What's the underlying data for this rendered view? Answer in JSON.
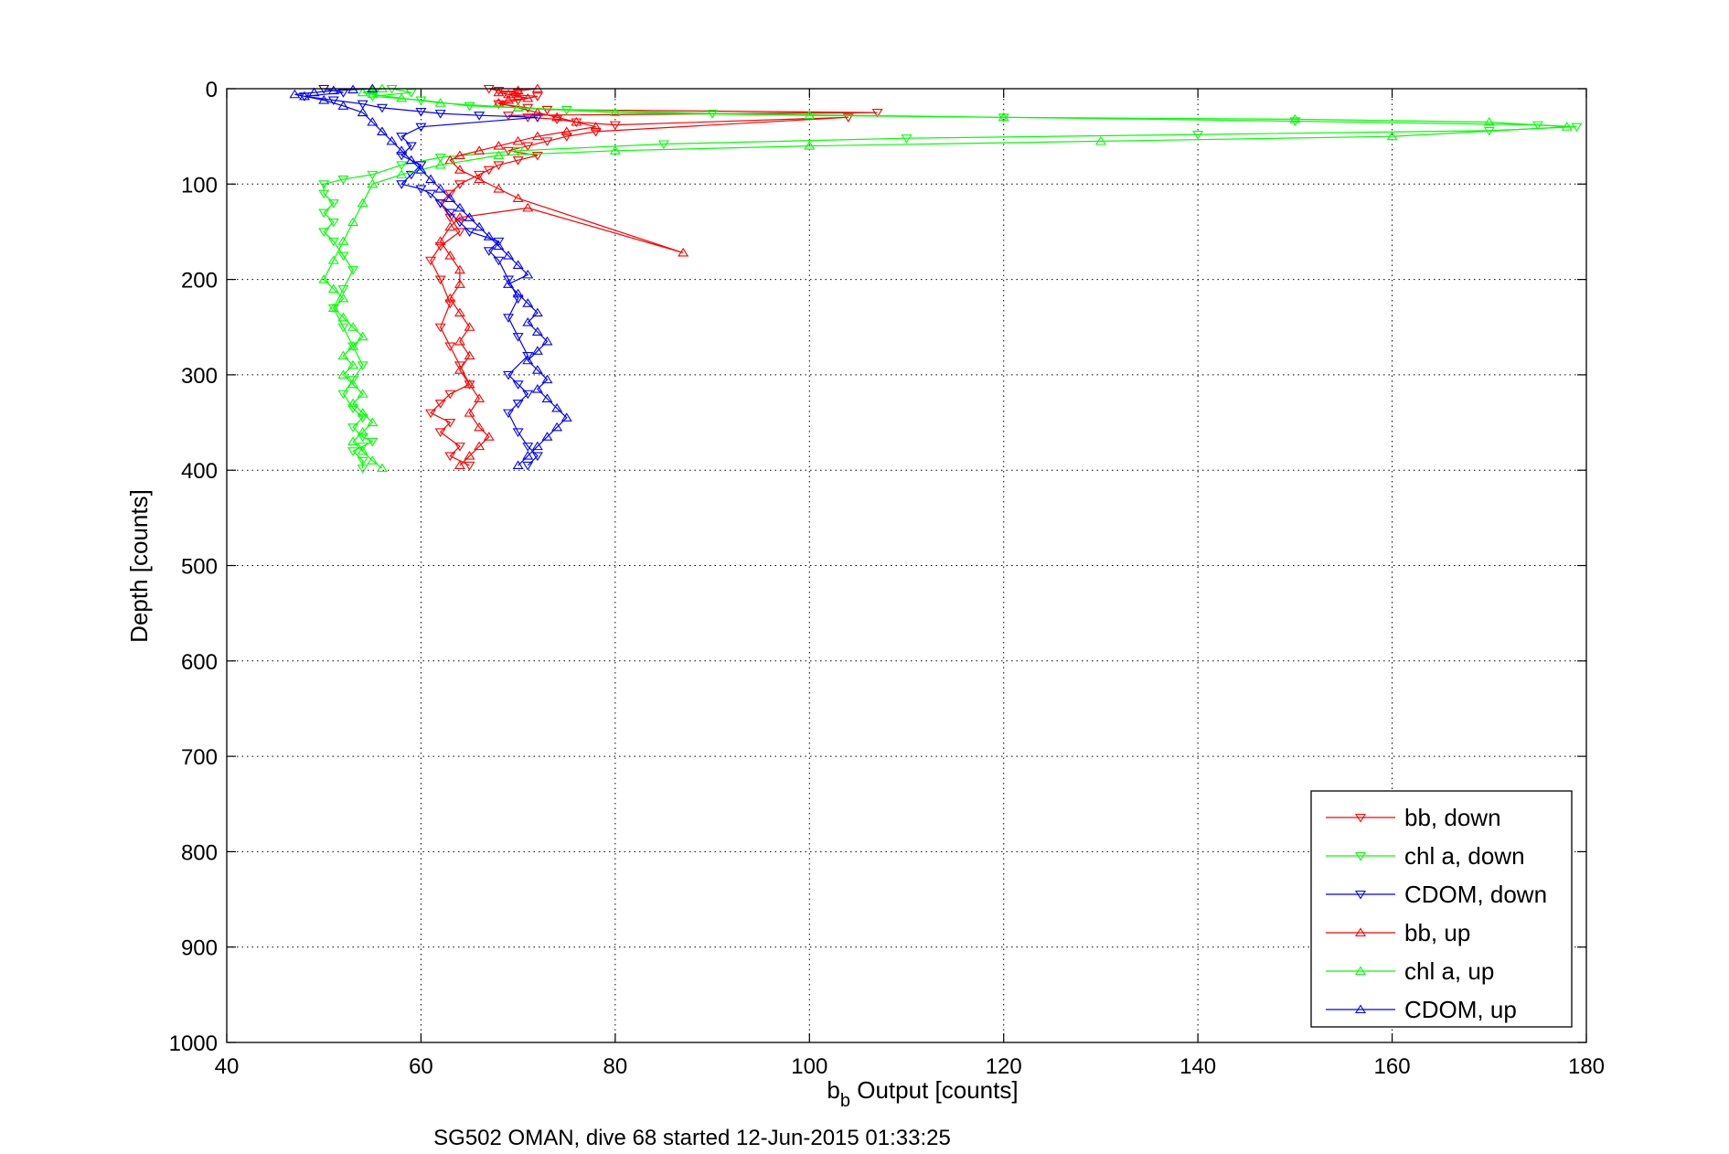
{
  "chart_data": {
    "type": "scatter",
    "title": "",
    "xlabel": {
      "main": "b",
      "sub": "b",
      "rest": " Output [counts]"
    },
    "ylabel": "Depth [counts]",
    "caption": "SG502 OMAN, dive 68 started 12-Jun-2015 01:33:25",
    "xlim": [
      40,
      180
    ],
    "ylim": [
      0,
      1000
    ],
    "y_reversed": true,
    "grid": true,
    "legend_position": "bottom-right",
    "xticks": [
      40,
      60,
      80,
      100,
      120,
      140,
      160,
      180
    ],
    "yticks": [
      0,
      100,
      200,
      300,
      400,
      500,
      600,
      700,
      800,
      900,
      1000
    ],
    "series": [
      {
        "name": "bb, down",
        "color": "#ff0000",
        "marker": "triangle-down",
        "x": [
          67,
          68,
          70,
          69,
          72,
          70,
          68,
          71,
          73,
          107,
          69,
          71,
          74,
          76,
          80,
          104,
          78,
          75,
          73,
          71,
          69,
          72,
          70,
          68,
          67,
          66,
          64,
          63,
          62,
          63,
          64,
          62,
          61,
          62,
          63,
          62,
          63,
          64,
          65,
          63,
          62,
          61,
          63,
          62,
          64,
          63,
          65
        ],
        "y": [
          0,
          2,
          4,
          6,
          8,
          12,
          16,
          20,
          22,
          25,
          28,
          30,
          32,
          35,
          38,
          30,
          45,
          50,
          55,
          60,
          65,
          70,
          75,
          80,
          85,
          90,
          100,
          110,
          120,
          135,
          150,
          165,
          180,
          200,
          225,
          250,
          270,
          290,
          310,
          320,
          330,
          340,
          350,
          360,
          375,
          385,
          395
        ]
      },
      {
        "name": "chl a, down",
        "color": "#00ff00",
        "marker": "triangle-down",
        "x": [
          57,
          59,
          55,
          60,
          65,
          75,
          90,
          120,
          150,
          175,
          179,
          170,
          140,
          110,
          85,
          70,
          62,
          58,
          55,
          52,
          50,
          50,
          51,
          50,
          51,
          50,
          51,
          52,
          53,
          52,
          51,
          52,
          53,
          54,
          53,
          52,
          53,
          54,
          53,
          54,
          55,
          54,
          53,
          54,
          54
        ],
        "y": [
          0,
          4,
          8,
          12,
          18,
          22,
          26,
          30,
          34,
          38,
          40,
          44,
          48,
          52,
          58,
          65,
          72,
          80,
          90,
          95,
          100,
          110,
          120,
          130,
          140,
          150,
          160,
          175,
          190,
          210,
          230,
          250,
          270,
          290,
          305,
          320,
          335,
          345,
          355,
          365,
          370,
          375,
          380,
          390,
          398
        ]
      },
      {
        "name": "CDOM, down",
        "color": "#0000ff",
        "marker": "triangle-down",
        "x": [
          50,
          52,
          48,
          51,
          54,
          56,
          60,
          62,
          66,
          72,
          60,
          58,
          59,
          58,
          60,
          59,
          58,
          60,
          61,
          62,
          63,
          64,
          65,
          68,
          67,
          68,
          69,
          70,
          69,
          70,
          71,
          69,
          70,
          71,
          70,
          69,
          70,
          71,
          72,
          71
        ],
        "y": [
          0,
          4,
          8,
          12,
          16,
          20,
          24,
          26,
          28,
          30,
          40,
          50,
          60,
          70,
          80,
          90,
          100,
          105,
          110,
          120,
          130,
          140,
          150,
          160,
          170,
          180,
          200,
          220,
          240,
          260,
          280,
          300,
          310,
          320,
          330,
          340,
          360,
          375,
          385,
          395
        ]
      },
      {
        "name": "bb, up",
        "color": "#ff0000",
        "marker": "triangle-up",
        "x": [
          64,
          65,
          66,
          67,
          66,
          65,
          66,
          65,
          64,
          65,
          64,
          65,
          64,
          63,
          64,
          64,
          63,
          62,
          63,
          64,
          71,
          87,
          70,
          68,
          66,
          64,
          63,
          64,
          66,
          68,
          70,
          72,
          75,
          78,
          76,
          74,
          72,
          70,
          68,
          69,
          71,
          70,
          69,
          68,
          70,
          72
        ],
        "y": [
          395,
          385,
          375,
          365,
          355,
          340,
          325,
          310,
          295,
          280,
          265,
          250,
          235,
          220,
          205,
          190,
          175,
          160,
          145,
          135,
          125,
          172,
          115,
          105,
          95,
          85,
          75,
          70,
          65,
          60,
          55,
          50,
          45,
          40,
          35,
          30,
          25,
          20,
          15,
          12,
          10,
          8,
          6,
          4,
          2,
          0
        ]
      },
      {
        "name": "chl a, up",
        "color": "#00ff00",
        "marker": "triangle-up",
        "x": [
          56,
          55,
          54,
          53,
          54,
          55,
          54,
          53,
          54,
          53,
          52,
          53,
          52,
          53,
          54,
          53,
          52,
          51,
          52,
          51,
          50,
          51,
          52,
          53,
          54,
          55,
          58,
          62,
          68,
          80,
          100,
          130,
          160,
          178,
          170,
          150,
          120,
          100,
          80,
          70,
          62,
          58,
          55,
          54,
          55,
          56
        ],
        "y": [
          398,
          390,
          380,
          370,
          360,
          350,
          340,
          330,
          320,
          310,
          300,
          290,
          280,
          270,
          260,
          250,
          240,
          230,
          220,
          210,
          200,
          180,
          160,
          140,
          120,
          100,
          90,
          80,
          70,
          65,
          60,
          55,
          50,
          40,
          35,
          32,
          30,
          28,
          25,
          20,
          15,
          10,
          6,
          4,
          2,
          0
        ]
      },
      {
        "name": "CDOM, up",
        "color": "#0000ff",
        "marker": "triangle-up",
        "x": [
          70,
          71,
          72,
          73,
          74,
          75,
          74,
          73,
          72,
          73,
          72,
          71,
          72,
          73,
          72,
          71,
          72,
          71,
          70,
          69,
          71,
          70,
          69,
          68,
          67,
          66,
          65,
          64,
          63,
          62,
          61,
          60,
          59,
          58,
          57,
          56,
          55,
          54,
          52,
          50,
          48,
          47,
          49,
          51,
          53,
          55
        ],
        "y": [
          395,
          385,
          375,
          365,
          355,
          345,
          335,
          325,
          315,
          305,
          295,
          285,
          275,
          265,
          255,
          245,
          235,
          225,
          215,
          205,
          195,
          185,
          175,
          165,
          155,
          145,
          135,
          125,
          115,
          105,
          95,
          85,
          75,
          65,
          55,
          45,
          35,
          25,
          18,
          12,
          8,
          6,
          4,
          2,
          1,
          0
        ]
      }
    ]
  }
}
